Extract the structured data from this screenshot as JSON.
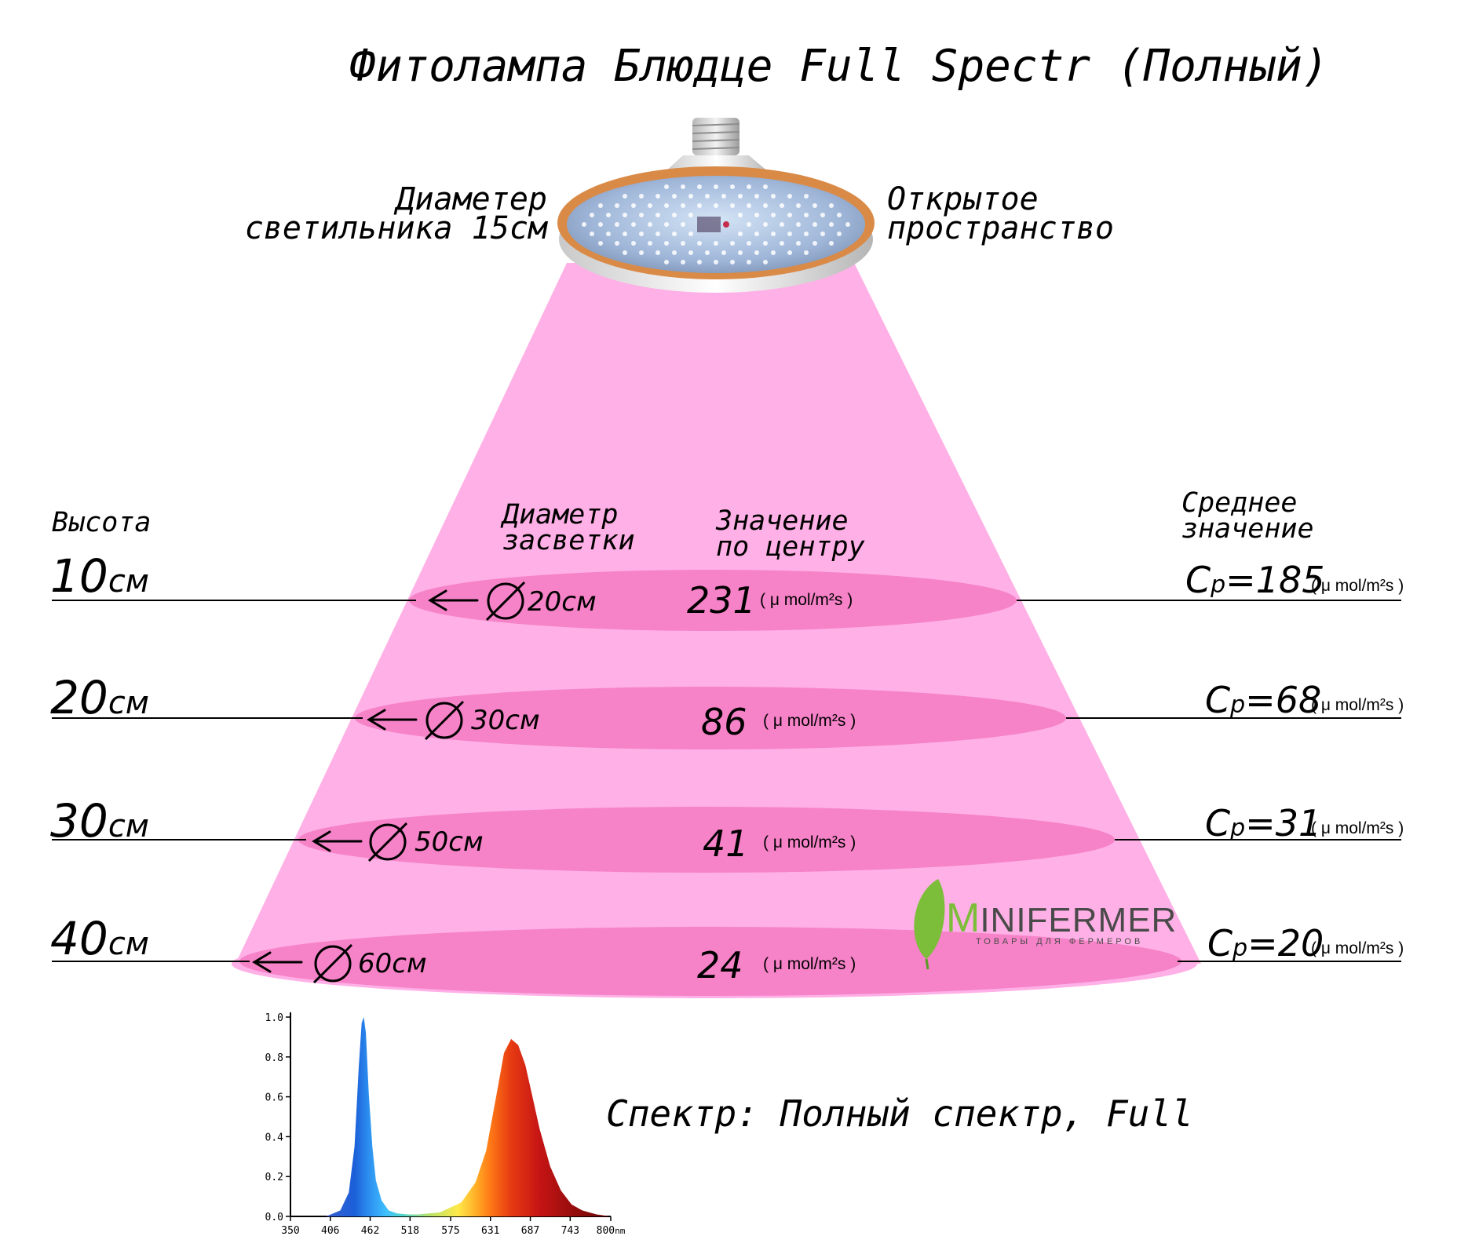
{
  "title": "Фитолампа Блюдце Full Spectr (Полный)",
  "lamp": {
    "diameter_label": [
      "Диаметер",
      "светильника 15см"
    ],
    "space_label": [
      "Открытое",
      "пространство"
    ]
  },
  "headers": {
    "height": "Высота",
    "diameter": [
      "Диаметр",
      "засветки"
    ],
    "center": [
      "Значение",
      "по центру"
    ],
    "average": [
      "Среднее",
      "значение"
    ]
  },
  "unit": "( μ mol/m²s )",
  "avg_prefix": "C",
  "avg_subscript": "p",
  "levels": [
    {
      "height": "10",
      "height_unit": "см",
      "diameter": "20см",
      "center": "231",
      "average": "=185"
    },
    {
      "height": "20",
      "height_unit": "см",
      "diameter": "30см",
      "center": "86",
      "average": "=68"
    },
    {
      "height": "30",
      "height_unit": "см",
      "diameter": "50см",
      "center": "41",
      "average": "=31"
    },
    {
      "height": "40",
      "height_unit": "см",
      "diameter": "60см",
      "center": "24",
      "average": "=20"
    }
  ],
  "logo": {
    "text_a": "M",
    "text_b": "INIFERMER",
    "tagline": "ТОВАРЫ ДЛЯ ФЕРМЕРОВ"
  },
  "spectrum_caption": "Спектр: Полный спектр, Full",
  "colors": {
    "beam": "#ffb0e6",
    "disc": "#f682c8",
    "lamp_rim": "#d98a46",
    "logo_green": "#7cbd3a"
  },
  "chart_data": {
    "type": "area",
    "x_ticks": [
      "350",
      "406",
      "462",
      "518",
      "575",
      "631",
      "687",
      "743",
      "800"
    ],
    "x_unit": "nm",
    "y_ticks": [
      "0.0",
      "0.2",
      "0.4",
      "0.6",
      "0.8",
      "1.0"
    ],
    "xlim": [
      350,
      800
    ],
    "ylim": [
      0,
      1.0
    ],
    "series": [
      {
        "x": [
          400,
          420,
          432,
          440,
          446,
          450,
          453,
          456,
          460,
          465,
          470,
          478,
          488,
          500,
          515,
          530,
          560,
          590,
          610,
          625,
          640,
          650,
          660,
          670,
          680,
          690,
          700,
          715,
          730,
          745,
          760,
          780,
          800
        ],
        "y": [
          0.0,
          0.03,
          0.12,
          0.35,
          0.75,
          0.97,
          1.0,
          0.92,
          0.62,
          0.35,
          0.18,
          0.08,
          0.03,
          0.015,
          0.01,
          0.01,
          0.02,
          0.07,
          0.17,
          0.33,
          0.62,
          0.82,
          0.89,
          0.86,
          0.76,
          0.6,
          0.44,
          0.25,
          0.13,
          0.06,
          0.03,
          0.01,
          0.0
        ]
      }
    ]
  }
}
